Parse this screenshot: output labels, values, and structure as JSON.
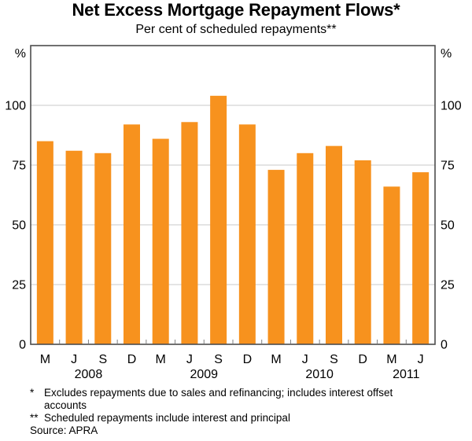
{
  "page": {
    "title": "Net Excess Mortgage Repayment Flows*",
    "subtitle": "Per cent of scheduled repayments**"
  },
  "chart_data": {
    "type": "bar",
    "title": "Net Excess Mortgage Repayment Flows*",
    "subtitle": "Per cent of scheduled repayments**",
    "unit_label": "%",
    "categories": [
      "M",
      "J",
      "S",
      "D",
      "M",
      "J",
      "S",
      "D",
      "M",
      "J",
      "S",
      "D",
      "M",
      "J"
    ],
    "values": [
      85,
      81,
      80,
      92,
      86,
      93,
      104,
      92,
      73,
      80,
      83,
      77,
      66,
      72
    ],
    "year_groups": [
      {
        "label": "2008",
        "start": 0,
        "end": 3
      },
      {
        "label": "2009",
        "start": 4,
        "end": 7
      },
      {
        "label": "2010",
        "start": 8,
        "end": 11
      },
      {
        "label": "2011",
        "start": 12,
        "end": 13
      }
    ],
    "y_ticks": [
      0,
      25,
      50,
      75,
      100
    ],
    "ylim": [
      0,
      125
    ],
    "grid": true,
    "legend": "none",
    "bar_color": "#F7921E",
    "frame_color": "#4D4D4D",
    "gridline_color": "#C8C8C8",
    "tick_color": "#808080",
    "text_color": "#000000"
  },
  "footnotes": [
    {
      "marker": "*",
      "text": "Excludes repayments due to sales and refinancing; includes interest offset accounts"
    },
    {
      "marker": "**",
      "text": "Scheduled repayments include interest and principal"
    }
  ],
  "source": "Source: APRA"
}
